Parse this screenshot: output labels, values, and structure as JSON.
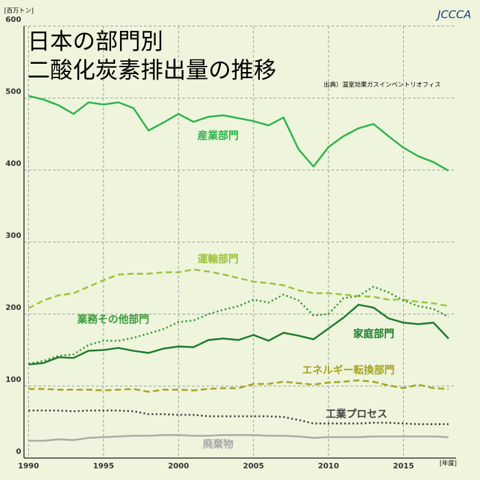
{
  "chart_data": {
    "type": "line",
    "title": [
      "日本の部門別",
      "二酸化炭素排出量の推移"
    ],
    "source": "出典）温室効果ガスインベントリオフィス",
    "logo": "JCCCA",
    "y_label": "[百万トン]",
    "x_label": "[年度]",
    "x": [
      1990,
      1991,
      1992,
      1993,
      1994,
      1995,
      1996,
      1997,
      1998,
      1999,
      2000,
      2001,
      2002,
      2003,
      2004,
      2005,
      2006,
      2007,
      2008,
      2009,
      2010,
      2011,
      2012,
      2013,
      2014,
      2015,
      2016,
      2017,
      2018
    ],
    "xlim": [
      1989.7,
      2018.5
    ],
    "xticks": [
      1990,
      1995,
      2000,
      2005,
      2010,
      2015
    ],
    "ylim": [
      0,
      600
    ],
    "yticks": [
      0,
      100,
      200,
      300,
      400,
      500,
      600
    ],
    "grid": true,
    "series": [
      {
        "name": "産業部門",
        "color": "#2db34a",
        "dash": "solid",
        "values": [
          503,
          498,
          490,
          478,
          494,
          491,
          494,
          486,
          455,
          466,
          478,
          467,
          474,
          476,
          472,
          468,
          462,
          473,
          429,
          405,
          432,
          447,
          458,
          464,
          447,
          431,
          419,
          411,
          399
        ]
      },
      {
        "name": "運輸部門",
        "color": "#9cc23c",
        "dash": "dashed",
        "values": [
          208,
          219,
          226,
          229,
          238,
          247,
          255,
          256,
          256,
          258,
          258,
          262,
          259,
          255,
          250,
          245,
          243,
          240,
          233,
          229,
          229,
          227,
          225,
          224,
          220,
          220,
          217,
          215,
          211
        ]
      },
      {
        "name": "業務その他部門",
        "color": "#3a9a3a",
        "dash": "dotted",
        "values": [
          131,
          135,
          142,
          144,
          157,
          163,
          163,
          167,
          173,
          179,
          189,
          191,
          200,
          206,
          211,
          220,
          216,
          227,
          219,
          198,
          200,
          222,
          225,
          238,
          230,
          219,
          211,
          207,
          196
        ]
      },
      {
        "name": "家庭部門",
        "color": "#1e7a30",
        "dash": "solid",
        "values": [
          130,
          132,
          140,
          139,
          149,
          150,
          153,
          149,
          146,
          152,
          155,
          154,
          164,
          166,
          164,
          171,
          163,
          174,
          170,
          165,
          180,
          195,
          213,
          209,
          194,
          188,
          186,
          188,
          166
        ]
      },
      {
        "name": "エネルギー転換部門",
        "color": "#a6a320",
        "dash": "dashed",
        "values": [
          96,
          96,
          95,
          95,
          95,
          94,
          95,
          96,
          92,
          95,
          95,
          94,
          96,
          97,
          97,
          103,
          103,
          106,
          104,
          102,
          105,
          106,
          108,
          106,
          101,
          97,
          102,
          97,
          96
        ]
      },
      {
        "name": "工業プロセス",
        "color": "#444444",
        "dash": "dotted",
        "values": [
          66,
          66,
          66,
          65,
          66,
          66,
          66,
          65,
          61,
          61,
          60,
          60,
          58,
          58,
          58,
          58,
          58,
          57,
          53,
          48,
          48,
          48,
          48,
          49,
          49,
          48,
          47,
          47,
          47
        ]
      },
      {
        "name": "廃棄物",
        "color": "#aaaaaa",
        "dash": "solid",
        "values": [
          24,
          24,
          26,
          25,
          28,
          29,
          30,
          31,
          31,
          32,
          32,
          31,
          31,
          32,
          32,
          32,
          31,
          31,
          30,
          28,
          29,
          29,
          29,
          30,
          30,
          30,
          30,
          30,
          29
        ]
      }
    ]
  }
}
